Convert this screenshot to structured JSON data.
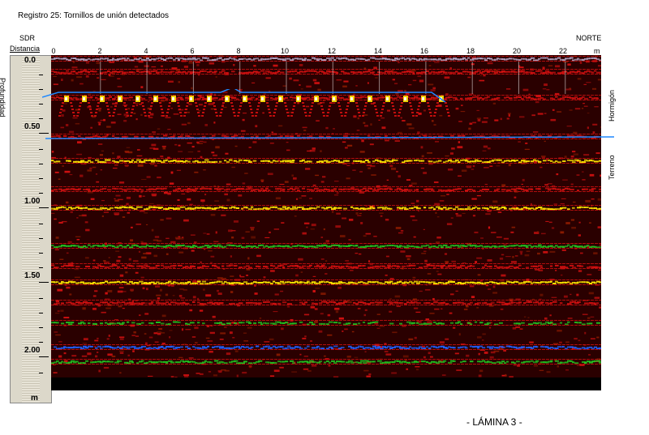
{
  "header": {
    "title": "Registro 25: Tornillos de unión detectados",
    "left_label": "SDR",
    "right_label": "NORTE",
    "distance_label": "Distancia",
    "x_unit": "m",
    "x_ticks": [
      "0",
      "2",
      "4",
      "6",
      "8",
      "10",
      "12",
      "14",
      "16",
      "18",
      "20",
      "22"
    ]
  },
  "depth_axis": {
    "label": "Profundidad",
    "ticks": [
      "0.0",
      "0.50",
      "1.00",
      "1.50",
      "2.00"
    ],
    "unit": "m"
  },
  "layers": {
    "upper": "Hormigón",
    "lower": "Terreno"
  },
  "caption": "- LÁMINA 3 -",
  "colors": {
    "background": "#2a0000",
    "band_red": "#d01010",
    "band_yellow": "#ffe600",
    "band_green": "#20c020",
    "band_blue": "#2060ff",
    "interface_line": "#1e88ff"
  }
}
